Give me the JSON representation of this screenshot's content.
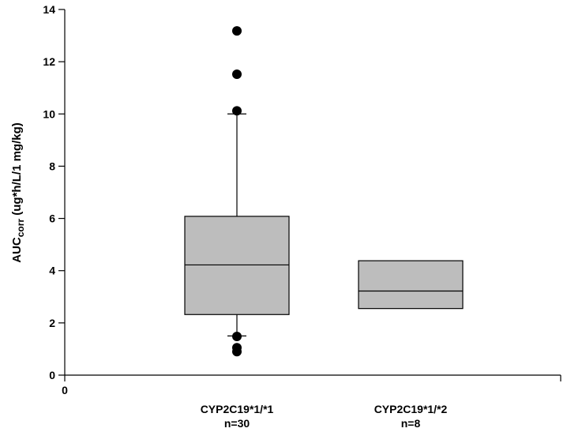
{
  "chart_data": {
    "type": "box",
    "ylabel": {
      "main": "AUC",
      "sub": "corr",
      "units": " (ug*h/L/1 mg/kg)"
    },
    "ylim": [
      0,
      14
    ],
    "yticks": [
      {
        "value": 0,
        "label": "0"
      },
      {
        "value": 2,
        "label": "2"
      },
      {
        "value": 4,
        "label": "4"
      },
      {
        "value": 6,
        "label": "6"
      },
      {
        "value": 8,
        "label": "8"
      },
      {
        "value": 10,
        "label": "10"
      },
      {
        "value": 12,
        "label": "12"
      },
      {
        "value": 14,
        "label": "14"
      }
    ],
    "x_origin_label": "0",
    "categories": [
      {
        "name": "CYP2C19*1/*1",
        "n_label": "n=30",
        "q1": 2.32,
        "median": 4.22,
        "q3": 6.08,
        "whisker_low": 1.5,
        "whisker_high": 10.0,
        "outliers": [
          13.18,
          11.52,
          10.12,
          1.48,
          1.05,
          0.9
        ]
      },
      {
        "name": "CYP2C19*1/*2",
        "n_label": "n=8",
        "q1": 2.55,
        "median": 3.22,
        "q3": 4.38,
        "whisker_low": null,
        "whisker_high": null,
        "outliers": []
      }
    ],
    "box_color": "#bdbdbd",
    "line_color": "#000000",
    "grid": false
  }
}
